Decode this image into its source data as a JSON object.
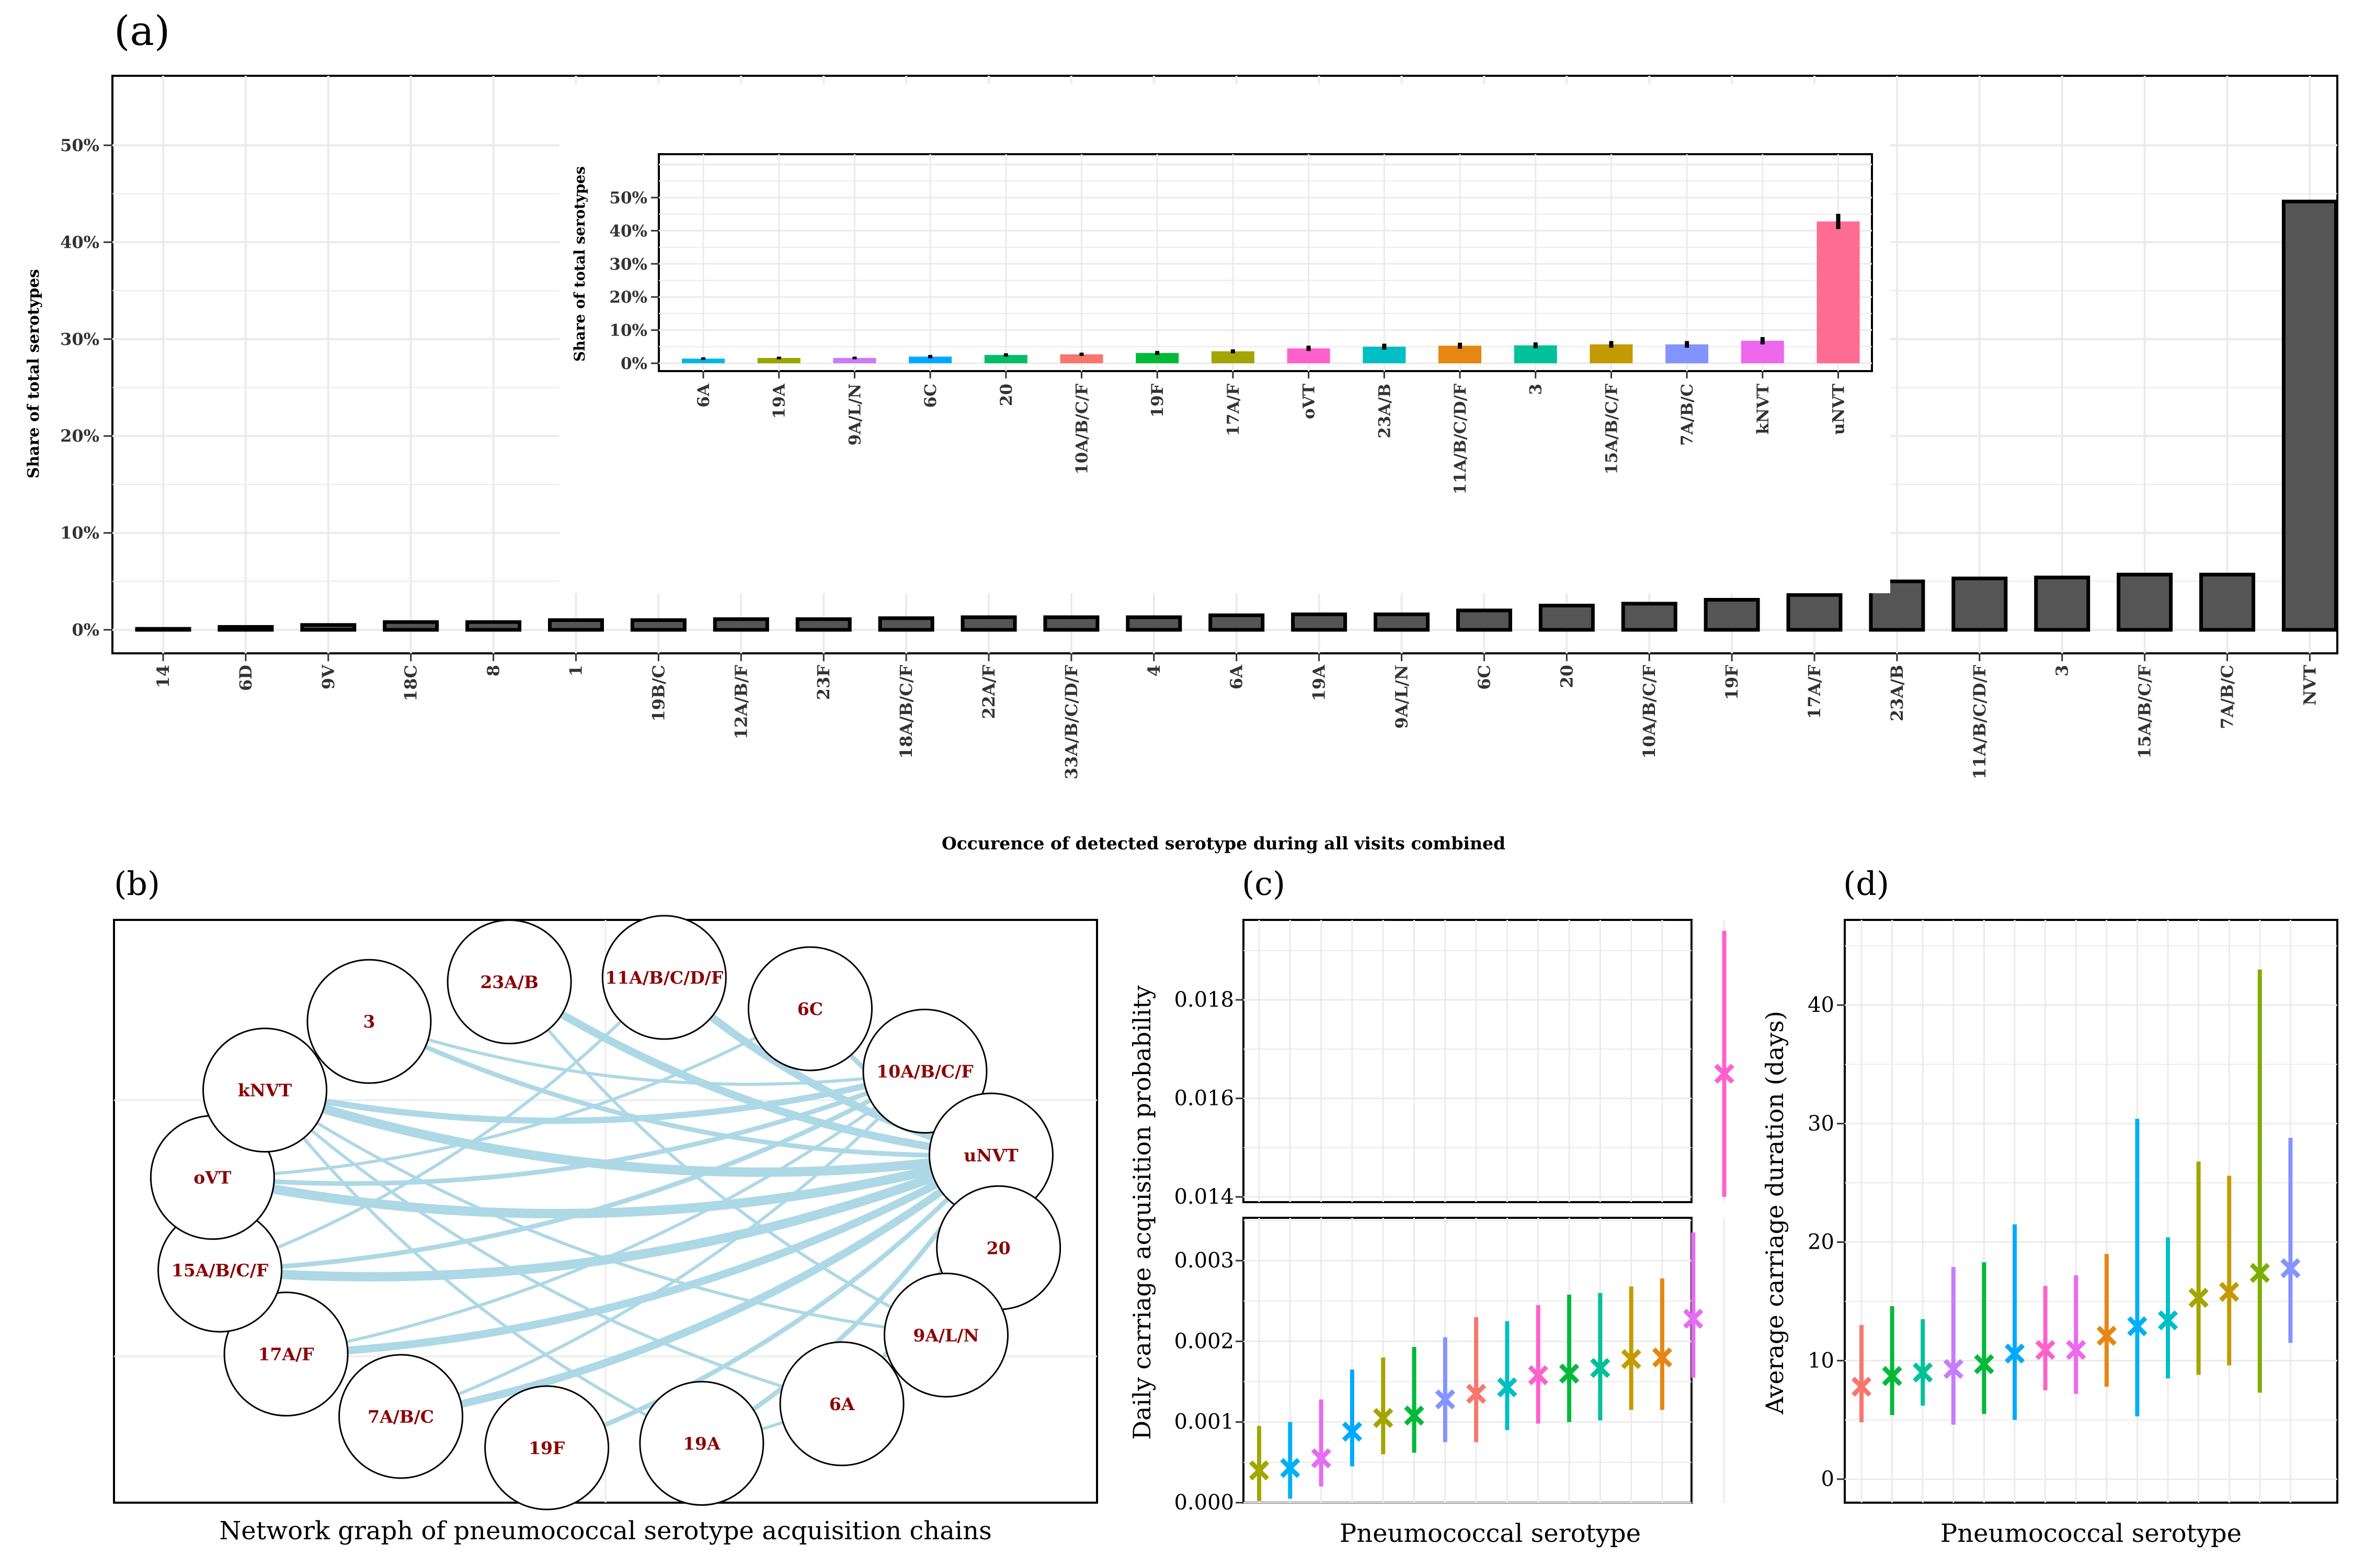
{
  "colors": {
    "main_bar": "#555555",
    "edge": "#add8e6",
    "node_label": "#8b0000",
    "grid": "#ebebeb",
    "palette": [
      "#00b8e7",
      "#9aa500",
      "#cc7af8",
      "#00a9ff",
      "#00be67",
      "#f8766d",
      "#00ba38",
      "#a3a500",
      "#ff61cc",
      "#00bfc4",
      "#e68613",
      "#00c19a",
      "#c49a00",
      "#8494ff",
      "#ed68ed",
      "#ff6c91"
    ]
  },
  "panels": {
    "a": {
      "tag": "(a)",
      "chart_data": {
        "type": "bar",
        "title": "",
        "xlabel": "Occurence of detected serotype during all visits combined",
        "ylabel": "Share of total serotypes",
        "ylim": [
          0,
          0.57
        ],
        "yticks": [
          "0%",
          "10%",
          "20%",
          "30%",
          "40%",
          "50%"
        ],
        "ytick_values": [
          0,
          0.1,
          0.2,
          0.3,
          0.4,
          0.5
        ],
        "categories": [
          "14",
          "6D",
          "9V",
          "18C",
          "8",
          "1",
          "19B/C",
          "12A/B/F",
          "23F",
          "18A/B/C/F",
          "22A/F",
          "33A/B/C/D/F",
          "4",
          "6A",
          "19A",
          "9A/L/N",
          "6C",
          "20",
          "10A/B/C/F",
          "19F",
          "17A/F",
          "23A/B",
          "11A/B/C/D/F",
          "3",
          "15A/B/C/F",
          "7A/B/C",
          "NVT"
        ],
        "values": [
          0.001,
          0.003,
          0.005,
          0.008,
          0.008,
          0.01,
          0.01,
          0.011,
          0.011,
          0.012,
          0.013,
          0.013,
          0.013,
          0.015,
          0.016,
          0.016,
          0.02,
          0.025,
          0.027,
          0.031,
          0.036,
          0.05,
          0.053,
          0.054,
          0.057,
          0.057,
          0.442
        ],
        "grid": true
      },
      "inset": {
        "chart_data": {
          "type": "bar",
          "title": "",
          "xlabel": "",
          "ylabel": "Share of total serotypes",
          "ylim": [
            -0.02,
            0.63
          ],
          "yticks": [
            "0%",
            "10%",
            "20%",
            "30%",
            "40%",
            "50%"
          ],
          "ytick_values": [
            0,
            0.1,
            0.2,
            0.3,
            0.4,
            0.5
          ],
          "categories": [
            "6A",
            "19A",
            "9A/L/N",
            "6C",
            "20",
            "10A/B/C/F",
            "19F",
            "17A/F",
            "oVT",
            "23A/B",
            "11A/B/C/D/F",
            "3",
            "15A/B/C/F",
            "7A/B/C",
            "kNVT",
            "uNVT"
          ],
          "values": [
            0.014,
            0.016,
            0.016,
            0.02,
            0.025,
            0.027,
            0.031,
            0.036,
            0.045,
            0.05,
            0.053,
            0.054,
            0.057,
            0.057,
            0.068,
            0.428
          ],
          "err_low": [
            0.01,
            0.012,
            0.012,
            0.015,
            0.02,
            0.022,
            0.025,
            0.03,
            0.037,
            0.041,
            0.044,
            0.045,
            0.047,
            0.047,
            0.057,
            0.405
          ],
          "err_high": [
            0.018,
            0.02,
            0.02,
            0.025,
            0.03,
            0.032,
            0.037,
            0.042,
            0.053,
            0.059,
            0.062,
            0.063,
            0.067,
            0.067,
            0.079,
            0.451
          ],
          "grid": true
        }
      }
    },
    "b": {
      "tag": "(b)",
      "xlabel": "Network graph of pneumococcal serotype acquisition chains",
      "nodes": [
        "23A/B",
        "11A/B/C/D/F",
        "6C",
        "10A/B/C/F",
        "uNVT",
        "20",
        "9A/L/N",
        "6A",
        "19A",
        "19F",
        "7A/B/C",
        "17A/F",
        "15A/B/C/F",
        "oVT",
        "kNVT",
        "3"
      ],
      "edges": [
        {
          "from": "kNVT",
          "to": "uNVT",
          "weight": 5
        },
        {
          "from": "oVT",
          "to": "uNVT",
          "weight": 5
        },
        {
          "from": "15A/B/C/F",
          "to": "uNVT",
          "weight": 5
        },
        {
          "from": "17A/F",
          "to": "uNVT",
          "weight": 4
        },
        {
          "from": "7A/B/C",
          "to": "uNVT",
          "weight": 4
        },
        {
          "from": "11A/B/C/D/F",
          "to": "uNVT",
          "weight": 4
        },
        {
          "from": "23A/B",
          "to": "uNVT",
          "weight": 4
        },
        {
          "from": "kNVT",
          "to": "10A/B/C/F",
          "weight": 3
        },
        {
          "from": "3",
          "to": "uNVT",
          "weight": 2
        },
        {
          "from": "6C",
          "to": "uNVT",
          "weight": 2
        },
        {
          "from": "10A/B/C/F",
          "to": "uNVT",
          "weight": 2
        },
        {
          "from": "19F",
          "to": "uNVT",
          "weight": 2
        },
        {
          "from": "19A",
          "to": "uNVT",
          "weight": 2
        },
        {
          "from": "6A",
          "to": "uNVT",
          "weight": 2
        },
        {
          "from": "9A/L/N",
          "to": "uNVT",
          "weight": 2
        },
        {
          "from": "20",
          "to": "uNVT",
          "weight": 2
        },
        {
          "from": "15A/B/C/F",
          "to": "10A/B/C/F",
          "weight": 2
        },
        {
          "from": "oVT",
          "to": "10A/B/C/F",
          "weight": 2
        },
        {
          "from": "kNVT",
          "to": "9A/L/N",
          "weight": 1
        },
        {
          "from": "kNVT",
          "to": "6A",
          "weight": 1
        },
        {
          "from": "kNVT",
          "to": "19A",
          "weight": 1
        },
        {
          "from": "oVT",
          "to": "6C",
          "weight": 1
        },
        {
          "from": "15A/B/C/F",
          "to": "11A/B/C/D/F",
          "weight": 1
        },
        {
          "from": "3",
          "to": "10A/B/C/F",
          "weight": 1
        },
        {
          "from": "23A/B",
          "to": "9A/L/N",
          "weight": 1
        },
        {
          "from": "17A/F",
          "to": "10A/B/C/F",
          "weight": 1
        },
        {
          "from": "7A/B/C",
          "to": "10A/B/C/F",
          "weight": 1
        },
        {
          "from": "19A",
          "to": "9A/L/N",
          "weight": 1
        }
      ]
    },
    "c": {
      "tag": "(c)",
      "chart_data": {
        "type": "scatter",
        "title": "",
        "xlabel": "Pneumococcal serotype",
        "ylabel": "Daily carriage acquisition probability",
        "upper": {
          "ylim": [
            0.0138,
            0.0196
          ],
          "yticks": [
            "0.014",
            "0.016",
            "0.018"
          ],
          "ytick_values": [
            0.014,
            0.016,
            0.018
          ]
        },
        "lower": {
          "ylim": [
            0,
            0.00365
          ],
          "yticks": [
            "0.000",
            "0.001",
            "0.002",
            "0.003"
          ],
          "ytick_values": [
            0,
            0.001,
            0.002,
            0.003
          ]
        },
        "y": [
          0.0004,
          0.00043,
          0.00055,
          0.00088,
          0.00105,
          0.00108,
          0.00128,
          0.00135,
          0.00143,
          0.00158,
          0.0016,
          0.00167,
          0.00178,
          0.0018,
          0.00228,
          0.0165
        ],
        "y_low": [
          2e-05,
          5e-05,
          0.0002,
          0.00045,
          0.0006,
          0.00062,
          0.00075,
          0.00075,
          0.0009,
          0.00098,
          0.001,
          0.00102,
          0.00115,
          0.00115,
          0.00155,
          0.014
        ],
        "y_high": [
          0.00095,
          0.001,
          0.00128,
          0.00165,
          0.0018,
          0.00193,
          0.00205,
          0.0023,
          0.00225,
          0.00245,
          0.00258,
          0.0026,
          0.00268,
          0.00278,
          0.00335,
          0.0194
        ],
        "grid": true
      }
    },
    "d": {
      "tag": "(d)",
      "chart_data": {
        "type": "scatter",
        "title": "",
        "xlabel": "Pneumococcal serotype",
        "ylabel": "Average carriage duration (days)",
        "ylim": [
          -2,
          46
        ],
        "yticks": [
          "0",
          "10",
          "20",
          "30",
          "40"
        ],
        "ytick_values": [
          0,
          10,
          20,
          30,
          40
        ],
        "y": [
          7.8,
          8.7,
          9.0,
          9.3,
          9.7,
          10.6,
          10.9,
          10.9,
          12.1,
          12.9,
          13.4,
          15.3,
          15.8,
          17.4,
          17.8
        ],
        "y_low": [
          4.8,
          5.4,
          6.2,
          4.6,
          5.5,
          5.0,
          7.5,
          7.2,
          7.8,
          5.3,
          8.5,
          8.8,
          9.6,
          7.3,
          11.5
        ],
        "y_high": [
          13.0,
          14.6,
          13.5,
          17.9,
          18.3,
          21.5,
          16.3,
          17.2,
          19.0,
          30.4,
          20.4,
          26.8,
          25.6,
          43.0,
          28.8
        ],
        "grid": true
      }
    }
  }
}
